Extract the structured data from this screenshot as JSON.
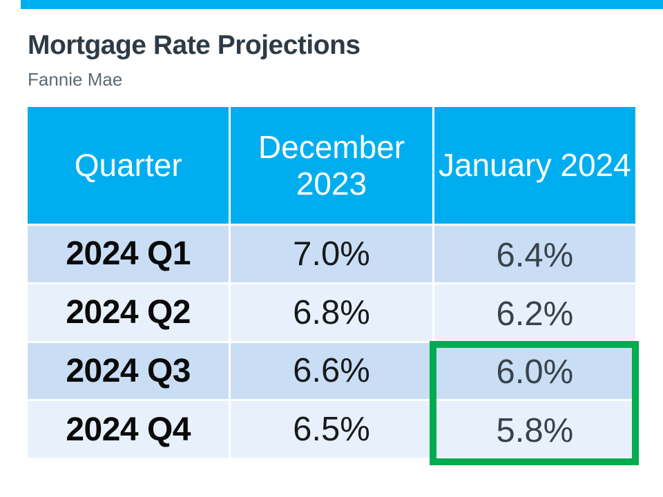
{
  "slide": {
    "title": "Mortgage Rate Projections",
    "subtitle": "Fannie Mae"
  },
  "colors": {
    "accent_cyan": "#00AEEF",
    "highlight_green": "#00AC50",
    "row_odd_blue": "#C9DEF5",
    "row_even_blue": "#E8F1FB",
    "title_text": "#2E3B47",
    "subtitle_text": "#5E6A73",
    "december_value_text": "#17191B",
    "january_value_text": "#39424B"
  },
  "chart_data": {
    "type": "table",
    "title": "Mortgage Rate Projections",
    "source": "Fannie Mae",
    "columns": [
      "Quarter",
      "December 2023",
      "January 2024"
    ],
    "rows": [
      [
        "2024 Q1",
        "7.0%",
        "6.4%"
      ],
      [
        "2024 Q2",
        "6.8%",
        "6.2%"
      ],
      [
        "2024 Q3",
        "6.6%",
        "6.0%"
      ],
      [
        "2024 Q4",
        "6.5%",
        "5.8%"
      ]
    ],
    "highlight": {
      "style": "green-outline-box",
      "color": "#00AC50",
      "column": "January 2024",
      "rows": [
        "2024 Q3",
        "2024 Q4"
      ],
      "values": [
        "6.0%",
        "5.8%"
      ]
    }
  }
}
